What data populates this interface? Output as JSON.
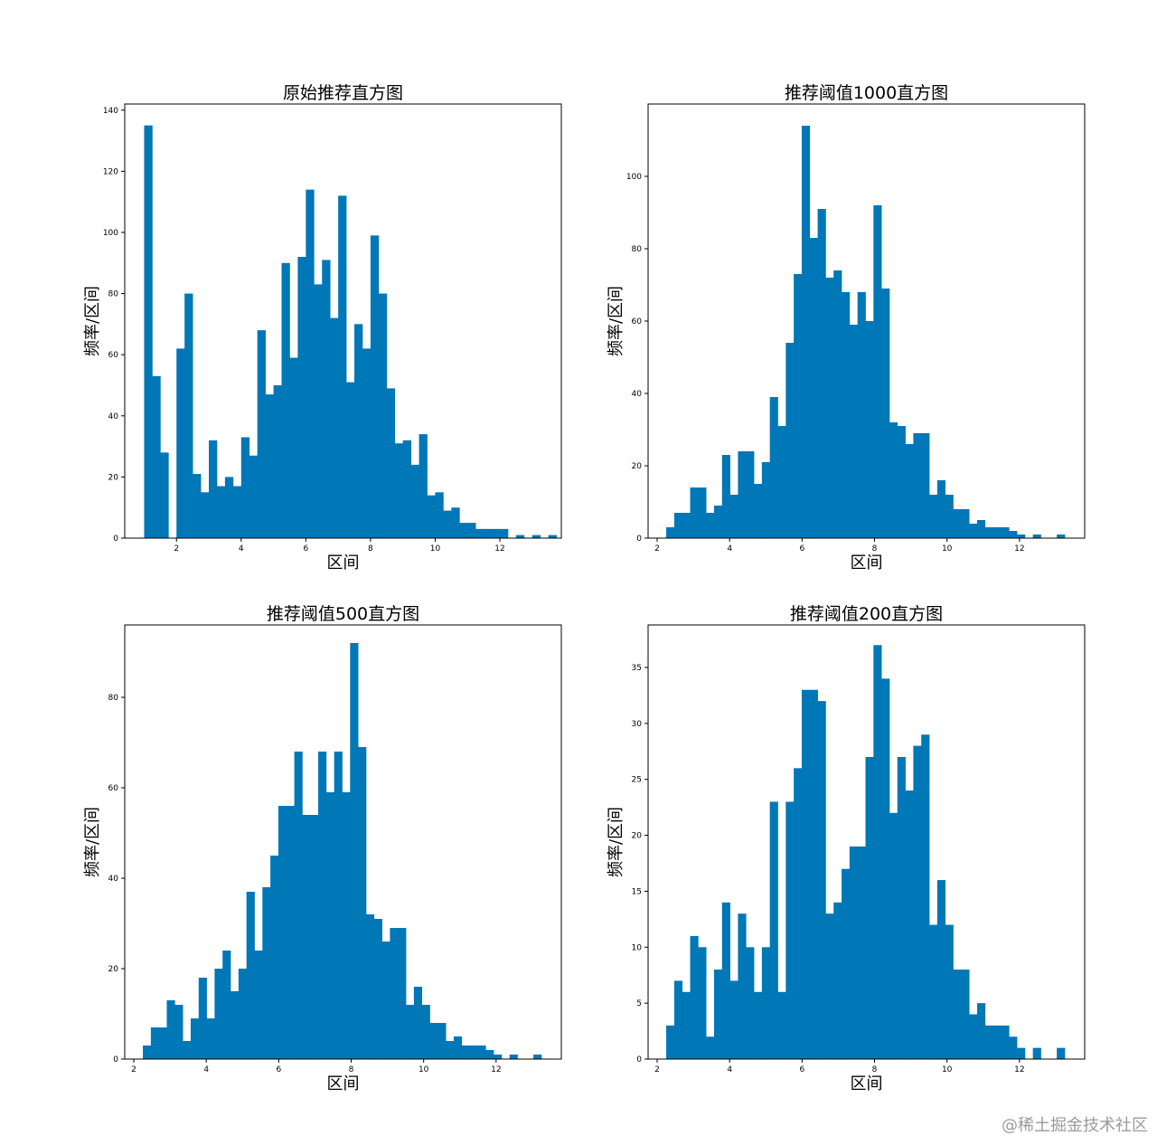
{
  "watermark": "@稀土掘金技术社区",
  "colors": {
    "bar": "#0077b6",
    "axis": "#000000",
    "background": "#ffffff"
  },
  "chart_data": [
    {
      "type": "bar",
      "title": "原始推荐直方图",
      "xlabel": "区间",
      "ylabel": "频率/区间",
      "xlim": [
        0.4,
        13.9
      ],
      "ylim": [
        0,
        142
      ],
      "xticks": [
        2,
        4,
        6,
        8,
        10,
        12
      ],
      "yticks": [
        0,
        20,
        40,
        60,
        80,
        100,
        120,
        140
      ],
      "grid": false,
      "bin_start": 1.0,
      "bin_width": 0.25,
      "values": [
        135,
        53,
        28,
        0,
        62,
        80,
        21,
        15,
        32,
        17,
        20,
        17,
        33,
        27,
        68,
        47,
        50,
        90,
        59,
        92,
        114,
        83,
        91,
        72,
        112,
        51,
        70,
        62,
        99,
        80,
        49,
        31,
        32,
        24,
        34,
        14,
        15,
        9,
        10,
        5,
        5,
        3,
        3,
        3,
        3,
        0,
        1,
        0,
        1,
        0,
        1
      ]
    },
    {
      "type": "bar",
      "title": "推荐阈值1000直方图",
      "xlabel": "区间",
      "ylabel": "频率/区间",
      "xlim": [
        1.75,
        13.8
      ],
      "ylim": [
        0,
        120
      ],
      "xticks": [
        2,
        4,
        6,
        8,
        10,
        12
      ],
      "yticks": [
        0,
        20,
        40,
        60,
        80,
        100
      ],
      "grid": false,
      "bin_start": 2.25,
      "bin_width": 0.22,
      "values": [
        3,
        7,
        7,
        14,
        14,
        7,
        9,
        23,
        12,
        24,
        24,
        15,
        21,
        39,
        31,
        54,
        73,
        114,
        83,
        91,
        72,
        74,
        68,
        59,
        68,
        60,
        92,
        69,
        32,
        31,
        26,
        29,
        29,
        12,
        16,
        12,
        8,
        8,
        4,
        5,
        3,
        3,
        3,
        2,
        1,
        0,
        1,
        0,
        0,
        1
      ]
    },
    {
      "type": "bar",
      "title": "推荐阈值500直方图",
      "xlabel": "区间",
      "ylabel": "频率/区间",
      "xlim": [
        1.75,
        13.8
      ],
      "ylim": [
        0,
        96
      ],
      "xticks": [
        2,
        4,
        6,
        8,
        10,
        12
      ],
      "yticks": [
        0,
        20,
        40,
        60,
        80
      ],
      "grid": false,
      "bin_start": 2.25,
      "bin_width": 0.22,
      "values": [
        3,
        7,
        7,
        13,
        12,
        4,
        9,
        18,
        9,
        20,
        24,
        15,
        20,
        37,
        24,
        38,
        45,
        56,
        56,
        68,
        54,
        54,
        68,
        59,
        68,
        59,
        92,
        69,
        32,
        31,
        26,
        29,
        29,
        12,
        16,
        12,
        8,
        8,
        4,
        5,
        3,
        3,
        3,
        2,
        1,
        0,
        1,
        0,
        0,
        1
      ]
    },
    {
      "type": "bar",
      "title": "推荐阈值200直方图",
      "xlabel": "区间",
      "ylabel": "频率/区间",
      "xlim": [
        1.75,
        13.8
      ],
      "ylim": [
        0,
        38.8
      ],
      "xticks": [
        2,
        4,
        6,
        8,
        10,
        12
      ],
      "yticks": [
        0,
        5,
        10,
        15,
        20,
        25,
        30,
        35
      ],
      "grid": false,
      "bin_start": 2.25,
      "bin_width": 0.22,
      "values": [
        3,
        7,
        6,
        11,
        10,
        2,
        8,
        14,
        7,
        13,
        10,
        6,
        10,
        23,
        6,
        23,
        26,
        33,
        33,
        32,
        13,
        14,
        17,
        19,
        19,
        27,
        37,
        34,
        22,
        27,
        24,
        28,
        29,
        12,
        16,
        12,
        8,
        8,
        4,
        5,
        3,
        3,
        3,
        2,
        1,
        0,
        1,
        0,
        0,
        1
      ]
    }
  ]
}
